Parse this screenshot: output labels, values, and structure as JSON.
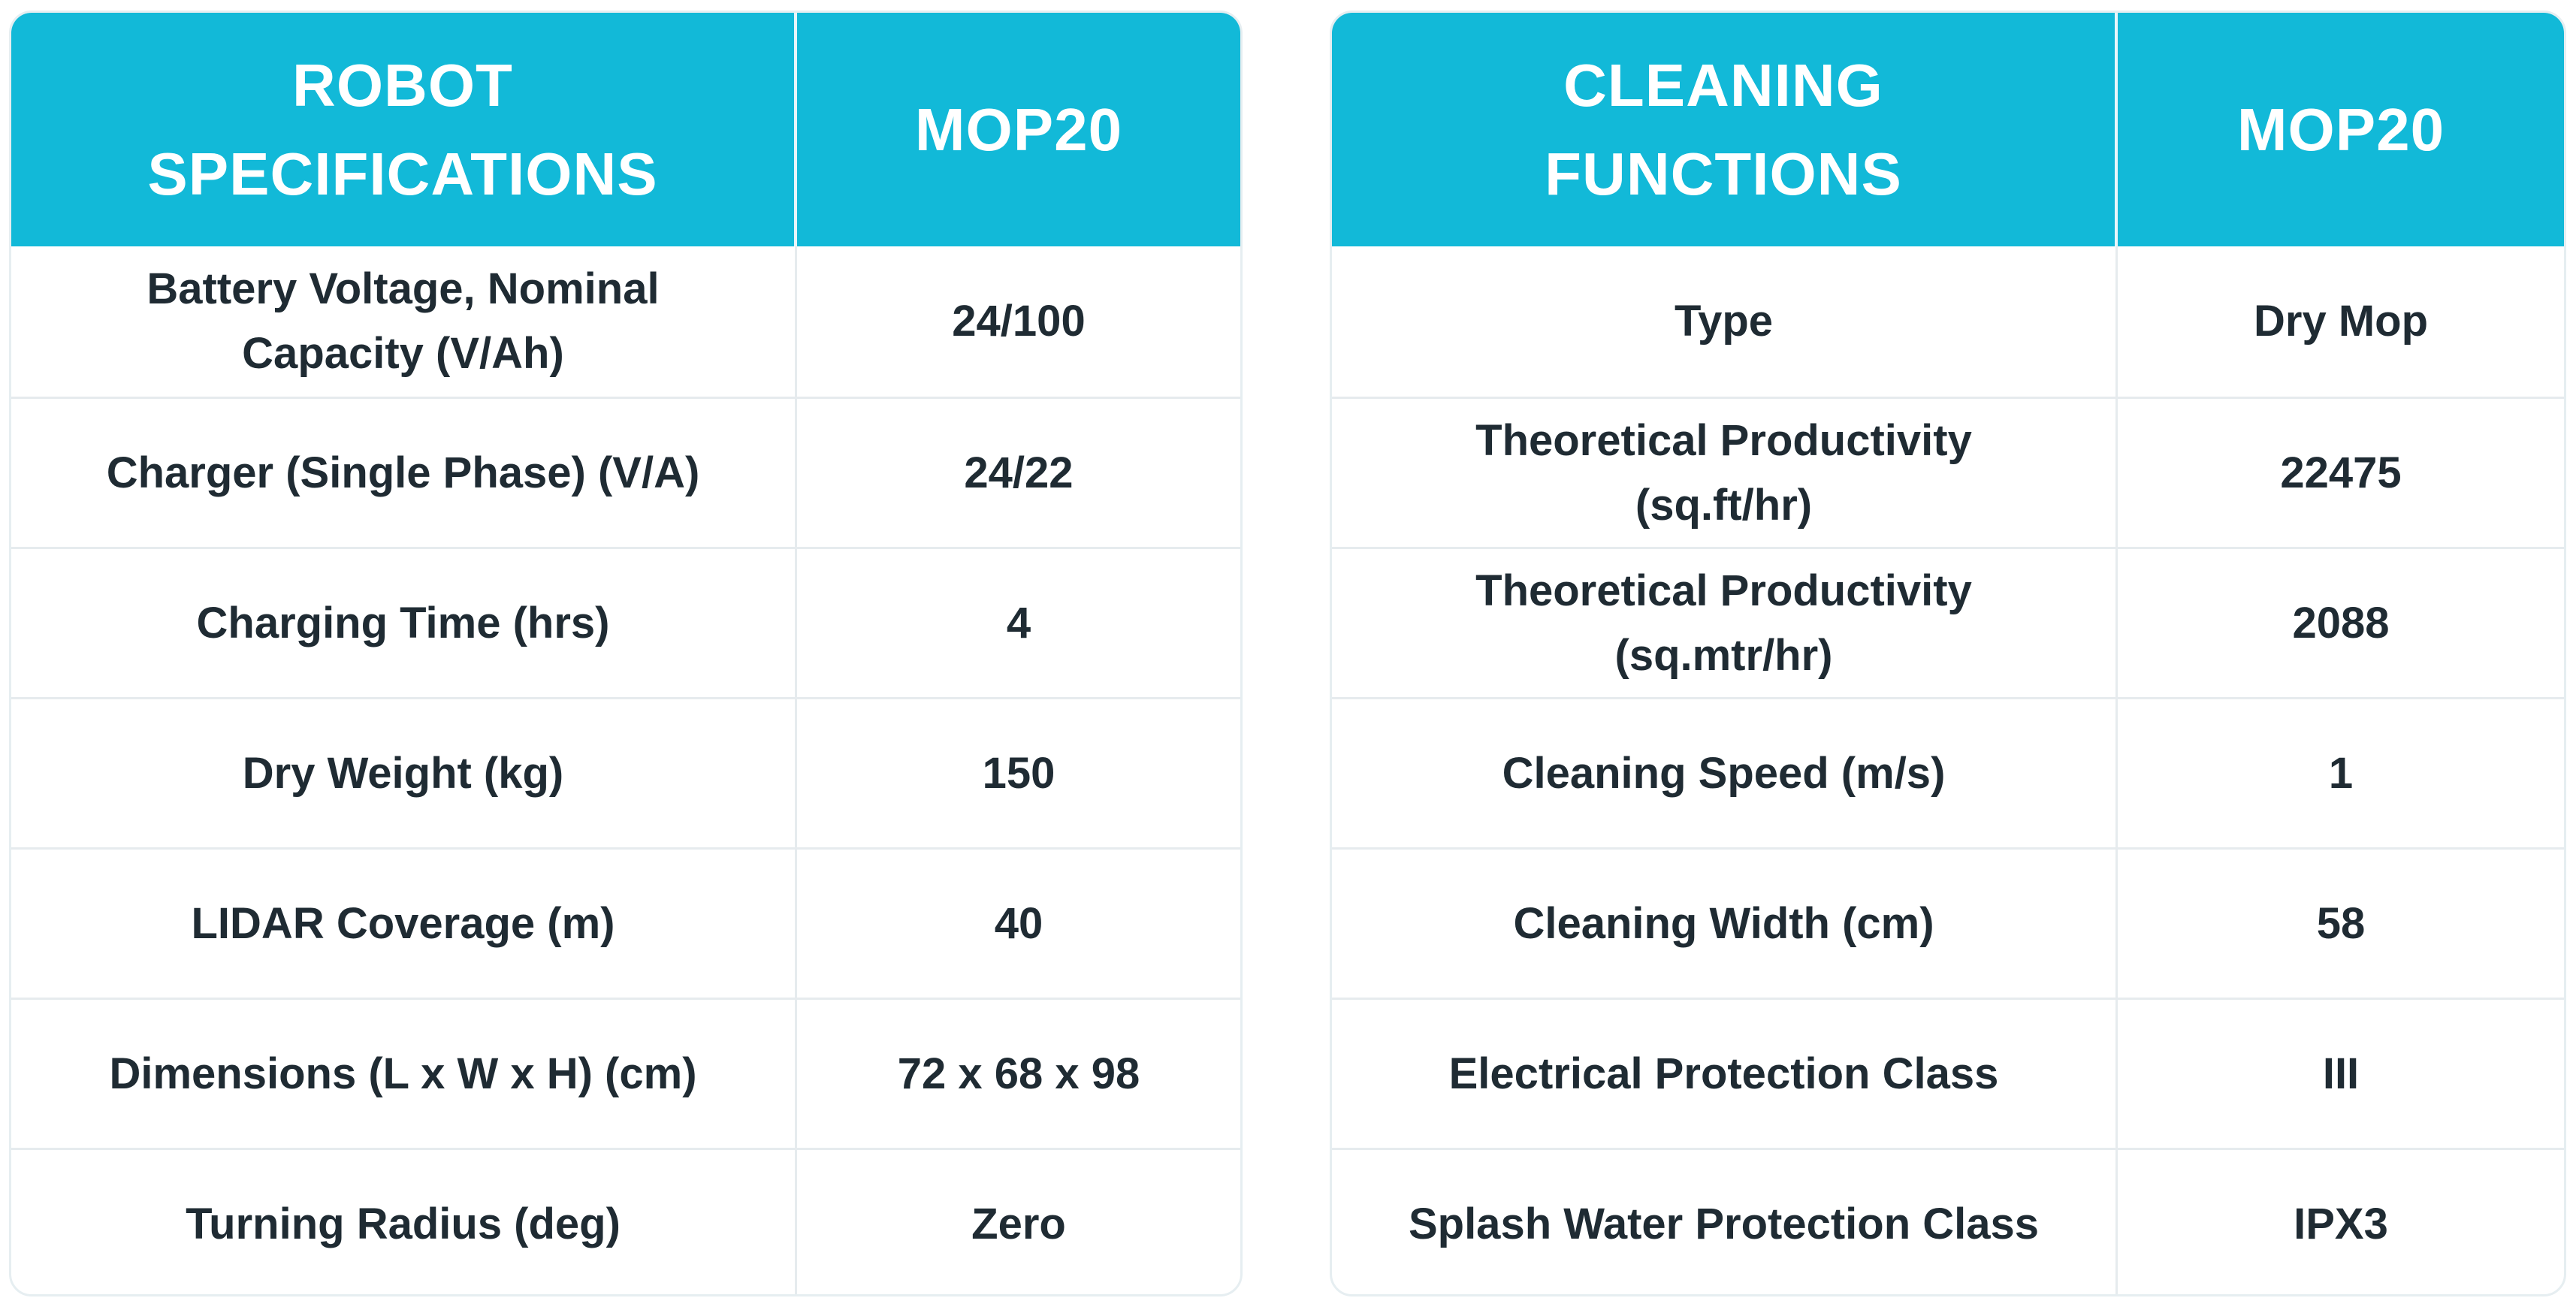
{
  "robot_specifications": {
    "header": {
      "label": "ROBOT\nSPECIFICATIONS",
      "model": "MOP20"
    },
    "rows": [
      {
        "label": "Battery Voltage, Nominal\nCapacity (V/Ah)",
        "value": "24/100"
      },
      {
        "label": "Charger (Single Phase) (V/A)",
        "value": "24/22"
      },
      {
        "label": "Charging Time (hrs)",
        "value": "4"
      },
      {
        "label": "Dry Weight (kg)",
        "value": "150"
      },
      {
        "label": "LIDAR Coverage (m)",
        "value": "40"
      },
      {
        "label": "Dimensions (L x W x H) (cm)",
        "value": "72 x 68 x 98"
      },
      {
        "label": "Turning Radius (deg)",
        "value": "Zero"
      }
    ]
  },
  "cleaning_functions": {
    "header": {
      "label": "CLEANING\nFUNCTIONS",
      "model": "MOP20"
    },
    "rows": [
      {
        "label": "Type",
        "value": "Dry Mop"
      },
      {
        "label": "Theoretical Productivity\n(sq.ft/hr)",
        "value": "22475"
      },
      {
        "label": "Theoretical Productivity\n(sq.mtr/hr)",
        "value": "2088"
      },
      {
        "label": "Cleaning Speed (m/s)",
        "value": "1"
      },
      {
        "label": "Cleaning Width (cm)",
        "value": "58"
      },
      {
        "label": "Electrical Protection Class",
        "value": "III"
      },
      {
        "label": "Splash Water Protection Class",
        "value": "IPX3"
      }
    ]
  },
  "colors": {
    "header_background": "#12b9d8",
    "header_text": "#ffffff",
    "body_text": "#1f2b33",
    "grid_line": "#e6ebee"
  }
}
